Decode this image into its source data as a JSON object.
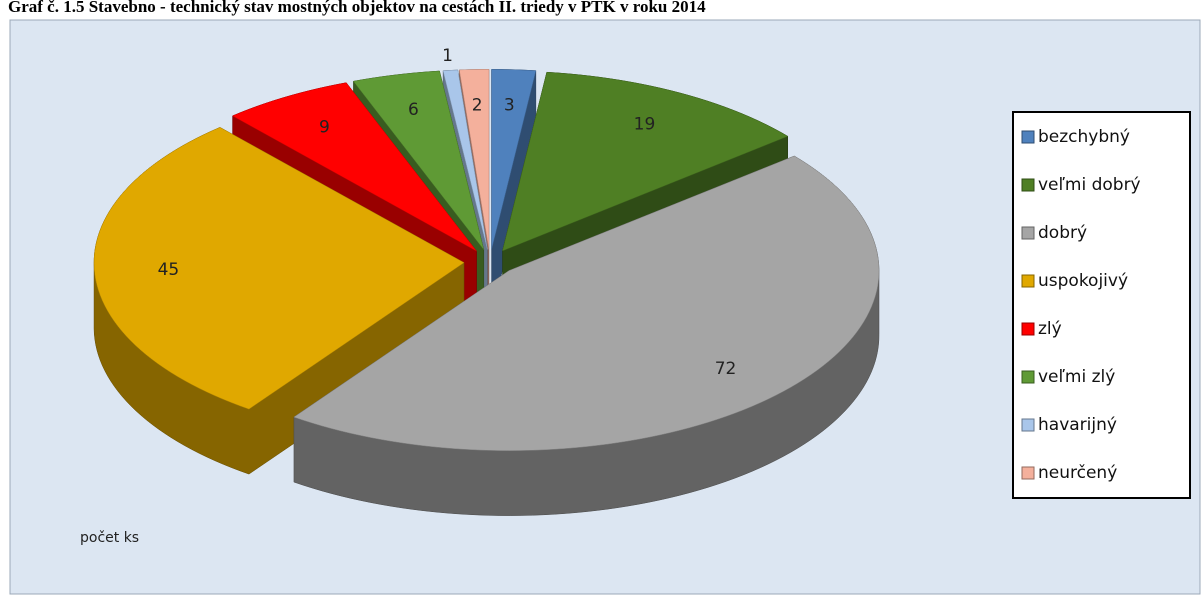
{
  "chart_data": {
    "type": "pie",
    "title": "Graf č. 1.5 Stavebno - technický stav mostných objektov na cestách II. triedy v PTK v roku 2014",
    "annotation": "počet ks",
    "categories": [
      "bezchybný",
      "veľmi dobrý",
      "dobrý",
      "uspokojivý",
      "zlý",
      "veľmi zlý",
      "havarijný",
      "neurčený"
    ],
    "values": [
      3,
      19,
      72,
      45,
      9,
      6,
      1,
      2
    ],
    "colors": [
      "#4f81bd",
      "#4f7f24",
      "#a5a5a5",
      "#e0a800",
      "#ff0000",
      "#5f9a35",
      "#a9c6ea",
      "#f4b09c"
    ],
    "legend": "right"
  }
}
